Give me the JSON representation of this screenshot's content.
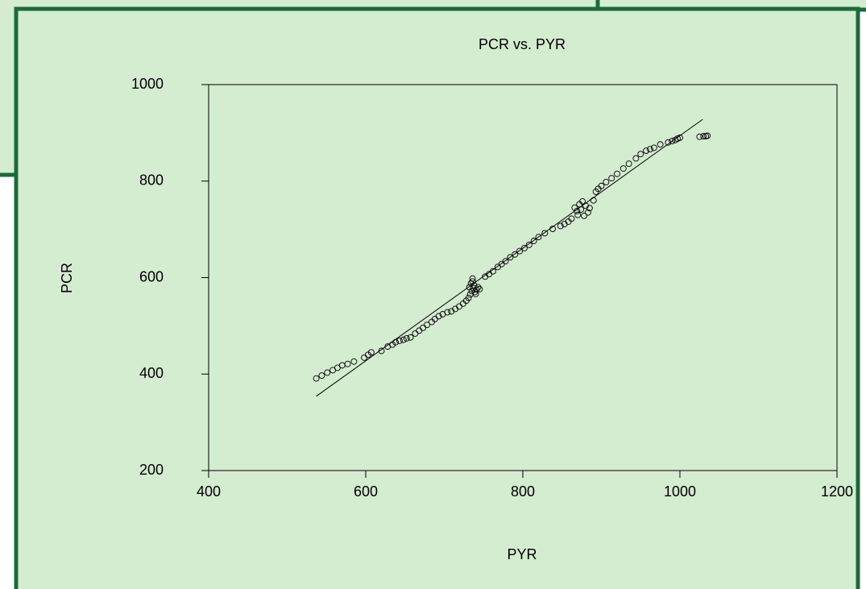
{
  "chart_data": {
    "type": "scatter",
    "title": "PCR vs. PYR",
    "x_label": "PYR",
    "y_label": "PCR",
    "x": [
      537,
      544,
      551,
      558,
      564,
      570,
      577,
      585,
      598,
      603,
      607,
      620,
      628,
      634,
      638,
      643,
      648,
      652,
      657,
      663,
      668,
      673,
      678,
      684,
      688,
      693,
      698,
      704,
      709,
      714,
      719,
      724,
      728,
      731,
      733,
      735,
      732,
      737,
      734,
      739,
      736,
      741,
      738,
      743,
      745,
      740,
      736,
      752,
      757,
      762,
      768,
      773,
      778,
      784,
      790,
      796,
      802,
      808,
      814,
      820,
      828,
      838,
      848,
      853,
      858,
      862,
      866,
      869,
      870,
      872,
      874,
      876,
      878,
      880,
      883,
      885,
      890,
      893,
      896,
      900,
      906,
      913,
      920,
      928,
      935,
      944,
      950,
      957,
      962,
      967,
      975,
      985,
      990,
      994,
      997,
      1000,
      1025,
      1030,
      1033,
      1035
    ],
    "y": [
      391,
      397,
      403,
      408,
      413,
      418,
      421,
      426,
      434,
      440,
      445,
      448,
      457,
      461,
      466,
      469,
      471,
      474,
      476,
      484,
      490,
      496,
      502,
      508,
      514,
      520,
      524,
      528,
      530,
      535,
      540,
      546,
      552,
      558,
      565,
      572,
      580,
      578,
      588,
      570,
      592,
      575,
      584,
      580,
      576,
      566,
      598,
      602,
      607,
      613,
      622,
      628,
      634,
      642,
      648,
      655,
      661,
      668,
      676,
      684,
      692,
      701,
      707,
      711,
      716,
      722,
      745,
      738,
      730,
      752,
      741,
      758,
      728,
      749,
      735,
      744,
      760,
      778,
      784,
      790,
      798,
      806,
      815,
      826,
      836,
      847,
      856,
      863,
      866,
      869,
      876,
      880,
      883,
      885,
      888,
      890,
      892,
      893,
      893,
      894
    ],
    "trend_line": {
      "x": [
        537,
        1029
      ],
      "y": [
        354,
        928
      ]
    },
    "xlim": [
      400,
      1200
    ],
    "ylim": [
      200,
      1000
    ],
    "xticks": [
      400,
      600,
      800,
      1000,
      1200
    ],
    "yticks": [
      200,
      400,
      600,
      800,
      1000
    ],
    "color": "#000000",
    "grid": false
  }
}
